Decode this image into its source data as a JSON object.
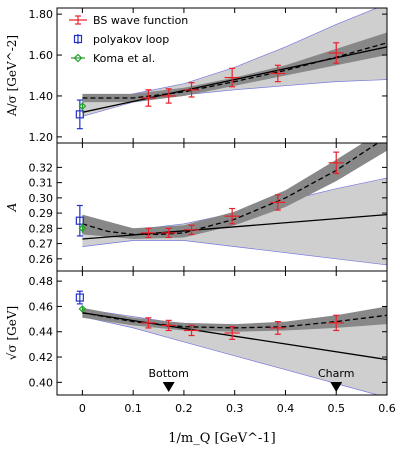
{
  "chart_data": {
    "type": "scatter",
    "xlabel": "1/m_Q  [GeV^-1]",
    "xlim": [
      -0.05,
      0.6
    ],
    "xticks": [
      0,
      0.1,
      0.2,
      0.3,
      0.4,
      0.5,
      0.6
    ],
    "xtick_labels": [
      "0",
      "0.1",
      "0.2",
      "0.3",
      "0.4",
      "0.5",
      "0.6"
    ],
    "legend": {
      "placement": "top-left",
      "entries": [
        "BS wave function",
        "polyakov loop",
        "Koma et al."
      ]
    },
    "annotations": [
      {
        "label": "Bottom",
        "x": 0.17
      },
      {
        "label": "Charm",
        "x": 0.5
      }
    ],
    "colors": {
      "bs": "#e8202a",
      "polyakov": "#2233cc",
      "koma": "#22a02a",
      "band_dark": "#888888",
      "band_light": "#cfcfcf",
      "band_edge": "#7777dd"
    },
    "panels": [
      {
        "id": "p1",
        "ylabel": "A/σ  [GeV^-2]",
        "ylim": [
          1.17,
          1.83
        ],
        "yticks": [
          1.2,
          1.4,
          1.6,
          1.8
        ],
        "ytick_labels": [
          "1.20",
          "1.40",
          "1.60",
          "1.80"
        ],
        "bs": [
          {
            "x": 0.13,
            "y": 1.39,
            "err": 0.04,
            "xerr": 0.015
          },
          {
            "x": 0.17,
            "y": 1.4,
            "err": 0.035,
            "xerr": 0.015
          },
          {
            "x": 0.215,
            "y": 1.43,
            "err": 0.035,
            "xerr": 0.015
          },
          {
            "x": 0.295,
            "y": 1.49,
            "err": 0.045,
            "xerr": 0.015
          },
          {
            "x": 0.385,
            "y": 1.51,
            "err": 0.04,
            "xerr": 0.015
          },
          {
            "x": 0.5,
            "y": 1.61,
            "err": 0.05,
            "xerr": 0.015
          }
        ],
        "polyakov": {
          "x": -0.005,
          "y": 1.31,
          "err": 0.07
        },
        "koma": {
          "x": 0.0,
          "y": 1.35,
          "err": 0.02
        },
        "band_light": {
          "x": [
            0,
            0.1,
            0.2,
            0.3,
            0.4,
            0.5,
            0.6
          ],
          "lo": [
            1.3,
            1.37,
            1.405,
            1.43,
            1.45,
            1.47,
            1.48
          ],
          "hi": [
            1.37,
            1.41,
            1.46,
            1.54,
            1.64,
            1.75,
            1.85
          ]
        },
        "band_dark": {
          "x": [
            0,
            0.1,
            0.2,
            0.3,
            0.4,
            0.5,
            0.6
          ],
          "lo": [
            1.37,
            1.37,
            1.4,
            1.45,
            1.5,
            1.55,
            1.6
          ],
          "hi": [
            1.41,
            1.41,
            1.44,
            1.49,
            1.55,
            1.63,
            1.71
          ]
        },
        "fit_line": {
          "x": [
            0,
            0.6
          ],
          "y": [
            1.32,
            1.64
          ]
        },
        "fit_dashed": {
          "x": [
            0,
            0.1,
            0.2,
            0.3,
            0.4,
            0.5,
            0.6
          ],
          "y": [
            1.39,
            1.39,
            1.42,
            1.47,
            1.525,
            1.59,
            1.66
          ]
        }
      },
      {
        "id": "p2",
        "ylabel": "A",
        "ylim": [
          0.252,
          0.336
        ],
        "yticks": [
          0.26,
          0.27,
          0.28,
          0.29,
          0.3,
          0.31,
          0.32
        ],
        "ytick_labels": [
          "0.26",
          "0.27",
          "0.28",
          "0.29",
          "0.30",
          "0.31",
          "0.32"
        ],
        "bs": [
          {
            "x": 0.13,
            "y": 0.277,
            "err": 0.003,
            "xerr": 0.015
          },
          {
            "x": 0.17,
            "y": 0.277,
            "err": 0.003,
            "xerr": 0.015
          },
          {
            "x": 0.215,
            "y": 0.279,
            "err": 0.003,
            "xerr": 0.015
          },
          {
            "x": 0.295,
            "y": 0.288,
            "err": 0.005,
            "xerr": 0.015
          },
          {
            "x": 0.385,
            "y": 0.297,
            "err": 0.005,
            "xerr": 0.015
          },
          {
            "x": 0.5,
            "y": 0.323,
            "err": 0.007,
            "xerr": 0.015
          }
        ],
        "polyakov": {
          "x": -0.005,
          "y": 0.285,
          "err": 0.01
        },
        "koma": {
          "x": 0.0,
          "y": 0.28,
          "err": 0.003
        },
        "band_light": {
          "x": [
            0,
            0.1,
            0.2,
            0.3,
            0.4,
            0.5,
            0.6
          ],
          "lo": [
            0.268,
            0.272,
            0.272,
            0.268,
            0.264,
            0.26,
            0.256
          ],
          "hi": [
            0.278,
            0.279,
            0.283,
            0.29,
            0.298,
            0.306,
            0.313
          ]
        },
        "band_dark": {
          "x": [
            0,
            0.1,
            0.2,
            0.3,
            0.4,
            0.5,
            0.6
          ],
          "lo": [
            0.276,
            0.273,
            0.274,
            0.282,
            0.294,
            0.311,
            0.331
          ],
          "hi": [
            0.289,
            0.28,
            0.282,
            0.291,
            0.305,
            0.325,
            0.346
          ]
        },
        "fit_line": {
          "x": [
            0,
            0.6
          ],
          "y": [
            0.273,
            0.289
          ]
        },
        "fit_dashed": {
          "x": [
            0,
            0.05,
            0.1,
            0.15,
            0.2,
            0.3,
            0.4,
            0.5,
            0.6
          ],
          "y": [
            0.283,
            0.278,
            0.276,
            0.276,
            0.277,
            0.286,
            0.3,
            0.318,
            0.34
          ]
        }
      },
      {
        "id": "p3",
        "ylabel": "√σ  [GeV]",
        "ylim": [
          0.39,
          0.488
        ],
        "yticks": [
          0.4,
          0.42,
          0.44,
          0.46,
          0.48
        ],
        "ytick_labels": [
          "0.40",
          "0.42",
          "0.44",
          "0.46",
          "0.48"
        ],
        "bs": [
          {
            "x": 0.13,
            "y": 0.447,
            "err": 0.004,
            "xerr": 0.015
          },
          {
            "x": 0.17,
            "y": 0.445,
            "err": 0.004,
            "xerr": 0.015
          },
          {
            "x": 0.215,
            "y": 0.441,
            "err": 0.004,
            "xerr": 0.015
          },
          {
            "x": 0.295,
            "y": 0.439,
            "err": 0.005,
            "xerr": 0.015
          },
          {
            "x": 0.385,
            "y": 0.443,
            "err": 0.005,
            "xerr": 0.015
          },
          {
            "x": 0.5,
            "y": 0.447,
            "err": 0.006,
            "xerr": 0.015
          }
        ],
        "polyakov": {
          "x": -0.005,
          "y": 0.467,
          "err": 0.005
        },
        "koma": {
          "x": 0.0,
          "y": 0.458,
          "err": 0.002
        },
        "band_light": {
          "x": [
            0,
            0.1,
            0.2,
            0.3,
            0.4,
            0.5,
            0.6
          ],
          "lo": [
            0.452,
            0.443,
            0.432,
            0.421,
            0.41,
            0.399,
            0.388
          ],
          "hi": [
            0.458,
            0.452,
            0.446,
            0.443,
            0.443,
            0.445,
            0.447
          ]
        },
        "band_dark": {
          "x": [
            0,
            0.1,
            0.2,
            0.3,
            0.4,
            0.5,
            0.6
          ],
          "lo": [
            0.451,
            0.445,
            0.441,
            0.44,
            0.441,
            0.443,
            0.446
          ],
          "hi": [
            0.459,
            0.451,
            0.447,
            0.446,
            0.448,
            0.453,
            0.46
          ]
        },
        "fit_line": {
          "x": [
            0,
            0.6
          ],
          "y": [
            0.455,
            0.418
          ]
        },
        "fit_dashed": {
          "x": [
            0,
            0.1,
            0.2,
            0.3,
            0.4,
            0.5,
            0.6
          ],
          "y": [
            0.455,
            0.448,
            0.444,
            0.443,
            0.444,
            0.448,
            0.453
          ]
        }
      }
    ]
  }
}
